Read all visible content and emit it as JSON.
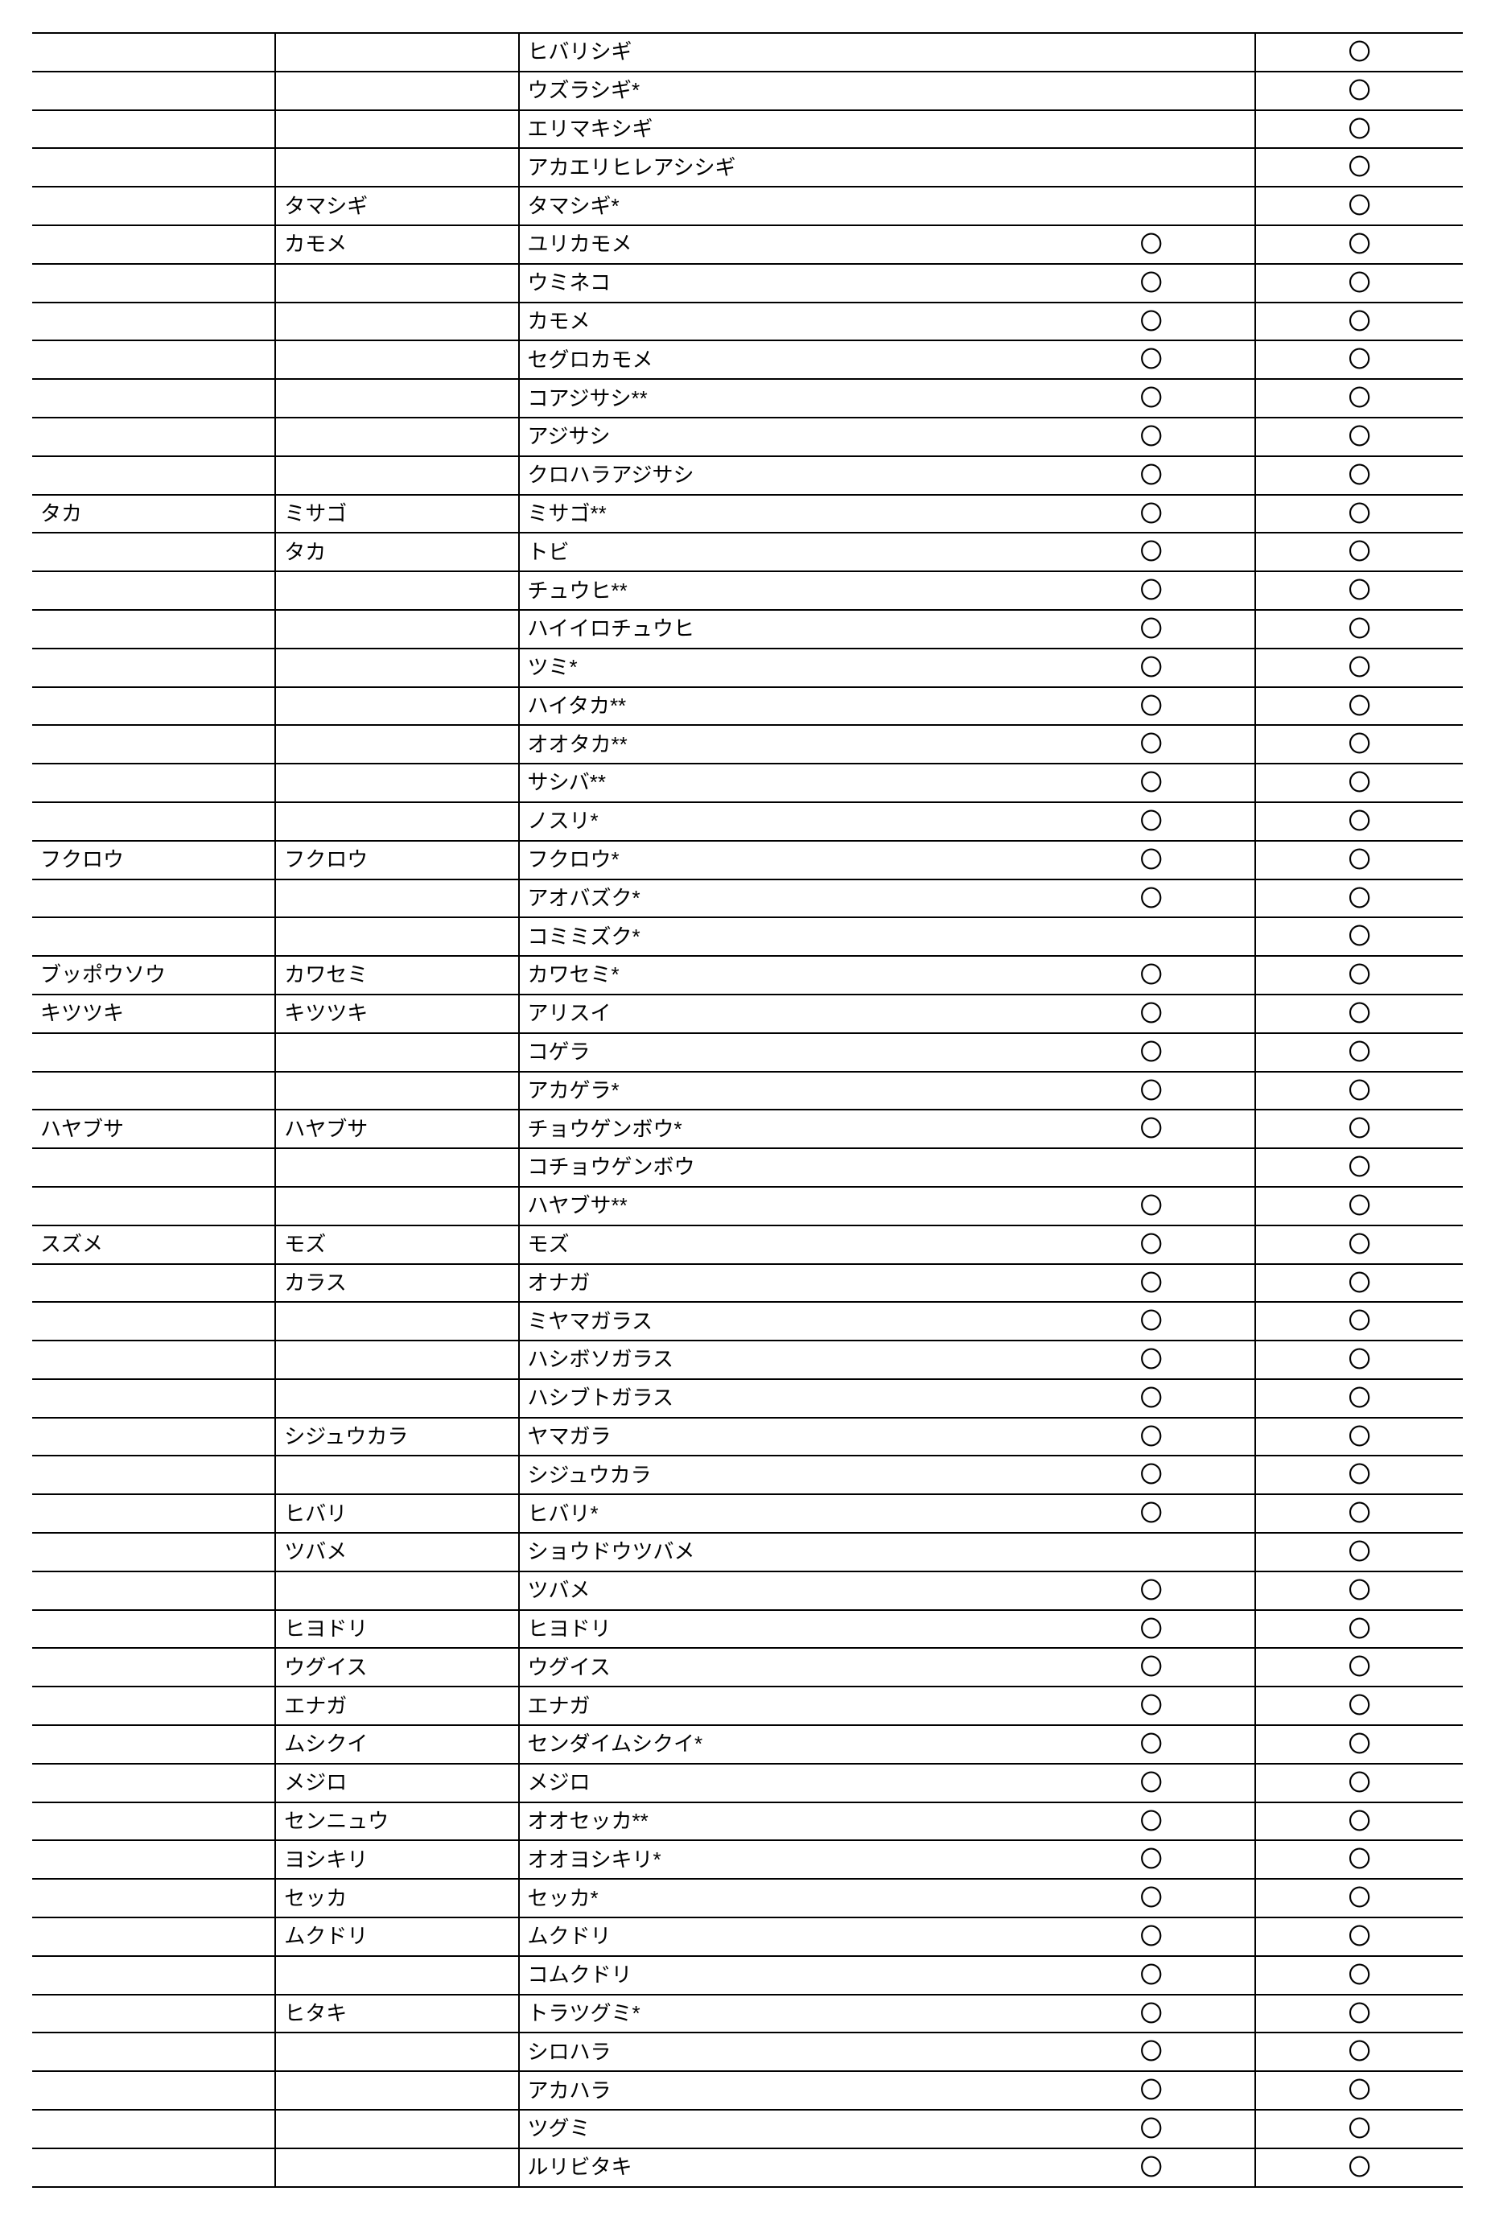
{
  "mark": "〇",
  "columns": [
    "order",
    "family",
    "species",
    "mark1",
    "mark2"
  ],
  "rows": [
    [
      "",
      "",
      "ヒバリシギ",
      "",
      "〇"
    ],
    [
      "",
      "",
      "ウズラシギ*",
      "",
      "〇"
    ],
    [
      "",
      "",
      "エリマキシギ",
      "",
      "〇"
    ],
    [
      "",
      "",
      "アカエリヒレアシシギ",
      "",
      "〇"
    ],
    [
      "",
      "タマシギ",
      "タマシギ*",
      "",
      "〇"
    ],
    [
      "",
      "カモメ",
      "ユリカモメ",
      "〇",
      "〇"
    ],
    [
      "",
      "",
      "ウミネコ",
      "〇",
      "〇"
    ],
    [
      "",
      "",
      "カモメ",
      "〇",
      "〇"
    ],
    [
      "",
      "",
      "セグロカモメ",
      "〇",
      "〇"
    ],
    [
      "",
      "",
      "コアジサシ**",
      "〇",
      "〇"
    ],
    [
      "",
      "",
      "アジサシ",
      "〇",
      "〇"
    ],
    [
      "",
      "",
      "クロハラアジサシ",
      "〇",
      "〇"
    ],
    [
      "タカ",
      "ミサゴ",
      "ミサゴ**",
      "〇",
      "〇"
    ],
    [
      "",
      "タカ",
      "トビ",
      "〇",
      "〇"
    ],
    [
      "",
      "",
      "チュウヒ**",
      "〇",
      "〇"
    ],
    [
      "",
      "",
      "ハイイロチュウヒ",
      "〇",
      "〇"
    ],
    [
      "",
      "",
      "ツミ*",
      "〇",
      "〇"
    ],
    [
      "",
      "",
      "ハイタカ**",
      "〇",
      "〇"
    ],
    [
      "",
      "",
      "オオタカ**",
      "〇",
      "〇"
    ],
    [
      "",
      "",
      "サシバ**",
      "〇",
      "〇"
    ],
    [
      "",
      "",
      "ノスリ*",
      "〇",
      "〇"
    ],
    [
      "フクロウ",
      "フクロウ",
      "フクロウ*",
      "〇",
      "〇"
    ],
    [
      "",
      "",
      "アオバズク*",
      "〇",
      "〇"
    ],
    [
      "",
      "",
      "コミミズク*",
      "",
      "〇"
    ],
    [
      "ブッポウソウ",
      "カワセミ",
      "カワセミ*",
      "〇",
      "〇"
    ],
    [
      "キツツキ",
      "キツツキ",
      "アリスイ",
      "〇",
      "〇"
    ],
    [
      "",
      "",
      "コゲラ",
      "〇",
      "〇"
    ],
    [
      "",
      "",
      "アカゲラ*",
      "〇",
      "〇"
    ],
    [
      "ハヤブサ",
      "ハヤブサ",
      "チョウゲンボウ*",
      "〇",
      "〇"
    ],
    [
      "",
      "",
      "コチョウゲンボウ",
      "",
      "〇"
    ],
    [
      "",
      "",
      "ハヤブサ**",
      "〇",
      "〇"
    ],
    [
      "スズメ",
      "モズ",
      "モズ",
      "〇",
      "〇"
    ],
    [
      "",
      "カラス",
      "オナガ",
      "〇",
      "〇"
    ],
    [
      "",
      "",
      "ミヤマガラス",
      "〇",
      "〇"
    ],
    [
      "",
      "",
      "ハシボソガラス",
      "〇",
      "〇"
    ],
    [
      "",
      "",
      "ハシブトガラス",
      "〇",
      "〇"
    ],
    [
      "",
      "シジュウカラ",
      "ヤマガラ",
      "〇",
      "〇"
    ],
    [
      "",
      "",
      "シジュウカラ",
      "〇",
      "〇"
    ],
    [
      "",
      "ヒバリ",
      "ヒバリ*",
      "〇",
      "〇"
    ],
    [
      "",
      "ツバメ",
      "ショウドウツバメ",
      "",
      "〇"
    ],
    [
      "",
      "",
      "ツバメ",
      "〇",
      "〇"
    ],
    [
      "",
      "ヒヨドリ",
      "ヒヨドリ",
      "〇",
      "〇"
    ],
    [
      "",
      "ウグイス",
      "ウグイス",
      "〇",
      "〇"
    ],
    [
      "",
      "エナガ",
      "エナガ",
      "〇",
      "〇"
    ],
    [
      "",
      "ムシクイ",
      "センダイムシクイ*",
      "〇",
      "〇"
    ],
    [
      "",
      "メジロ",
      "メジロ",
      "〇",
      "〇"
    ],
    [
      "",
      "センニュウ",
      "オオセッカ**",
      "〇",
      "〇"
    ],
    [
      "",
      "ヨシキリ",
      "オオヨシキリ*",
      "〇",
      "〇"
    ],
    [
      "",
      "セッカ",
      "セッカ*",
      "〇",
      "〇"
    ],
    [
      "",
      "ムクドリ",
      "ムクドリ",
      "〇",
      "〇"
    ],
    [
      "",
      "",
      "コムクドリ",
      "〇",
      "〇"
    ],
    [
      "",
      "ヒタキ",
      "トラツグミ*",
      "〇",
      "〇"
    ],
    [
      "",
      "",
      "シロハラ",
      "〇",
      "〇"
    ],
    [
      "",
      "",
      "アカハラ",
      "〇",
      "〇"
    ],
    [
      "",
      "",
      "ツグミ",
      "〇",
      "〇"
    ],
    [
      "",
      "",
      "ルリビタキ",
      "〇",
      "〇"
    ]
  ]
}
